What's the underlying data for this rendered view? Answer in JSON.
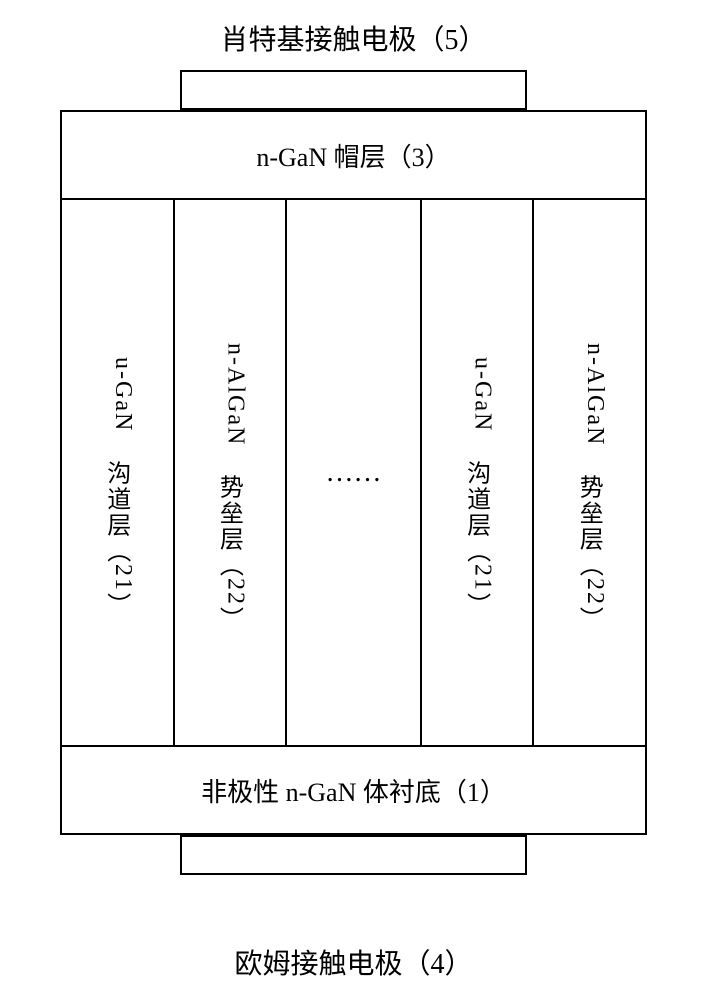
{
  "labels": {
    "top": "肖特基接触电极（5）",
    "bottom": "欧姆接触电极（4）"
  },
  "cap": "n-GaN 帽层（3）",
  "substrate": "非极性 n-GaN 体衬底（1）",
  "cols": {
    "c1_prefix": "u-GaN",
    "c1_cn": "沟道层（",
    "c1_num": "21",
    "c1_suffix": "）",
    "c2_prefix": "n-AlGaN",
    "c2_cn": "势垒层（",
    "c2_num": "22",
    "c2_suffix": "）",
    "ellipsis": "……",
    "c4_prefix": "u-GaN",
    "c4_cn": "沟道层（",
    "c4_num": "21",
    "c4_suffix": "）",
    "c5_prefix": "n-AlGaN",
    "c5_cn": "势垒层（",
    "c5_num": "22",
    "c5_suffix": "）"
  },
  "style": {
    "border_color": "#000000",
    "bg_color": "#ffffff",
    "font_family": "SimSun",
    "label_fontsize_pt": 21,
    "cell_fontsize_pt": 18
  }
}
